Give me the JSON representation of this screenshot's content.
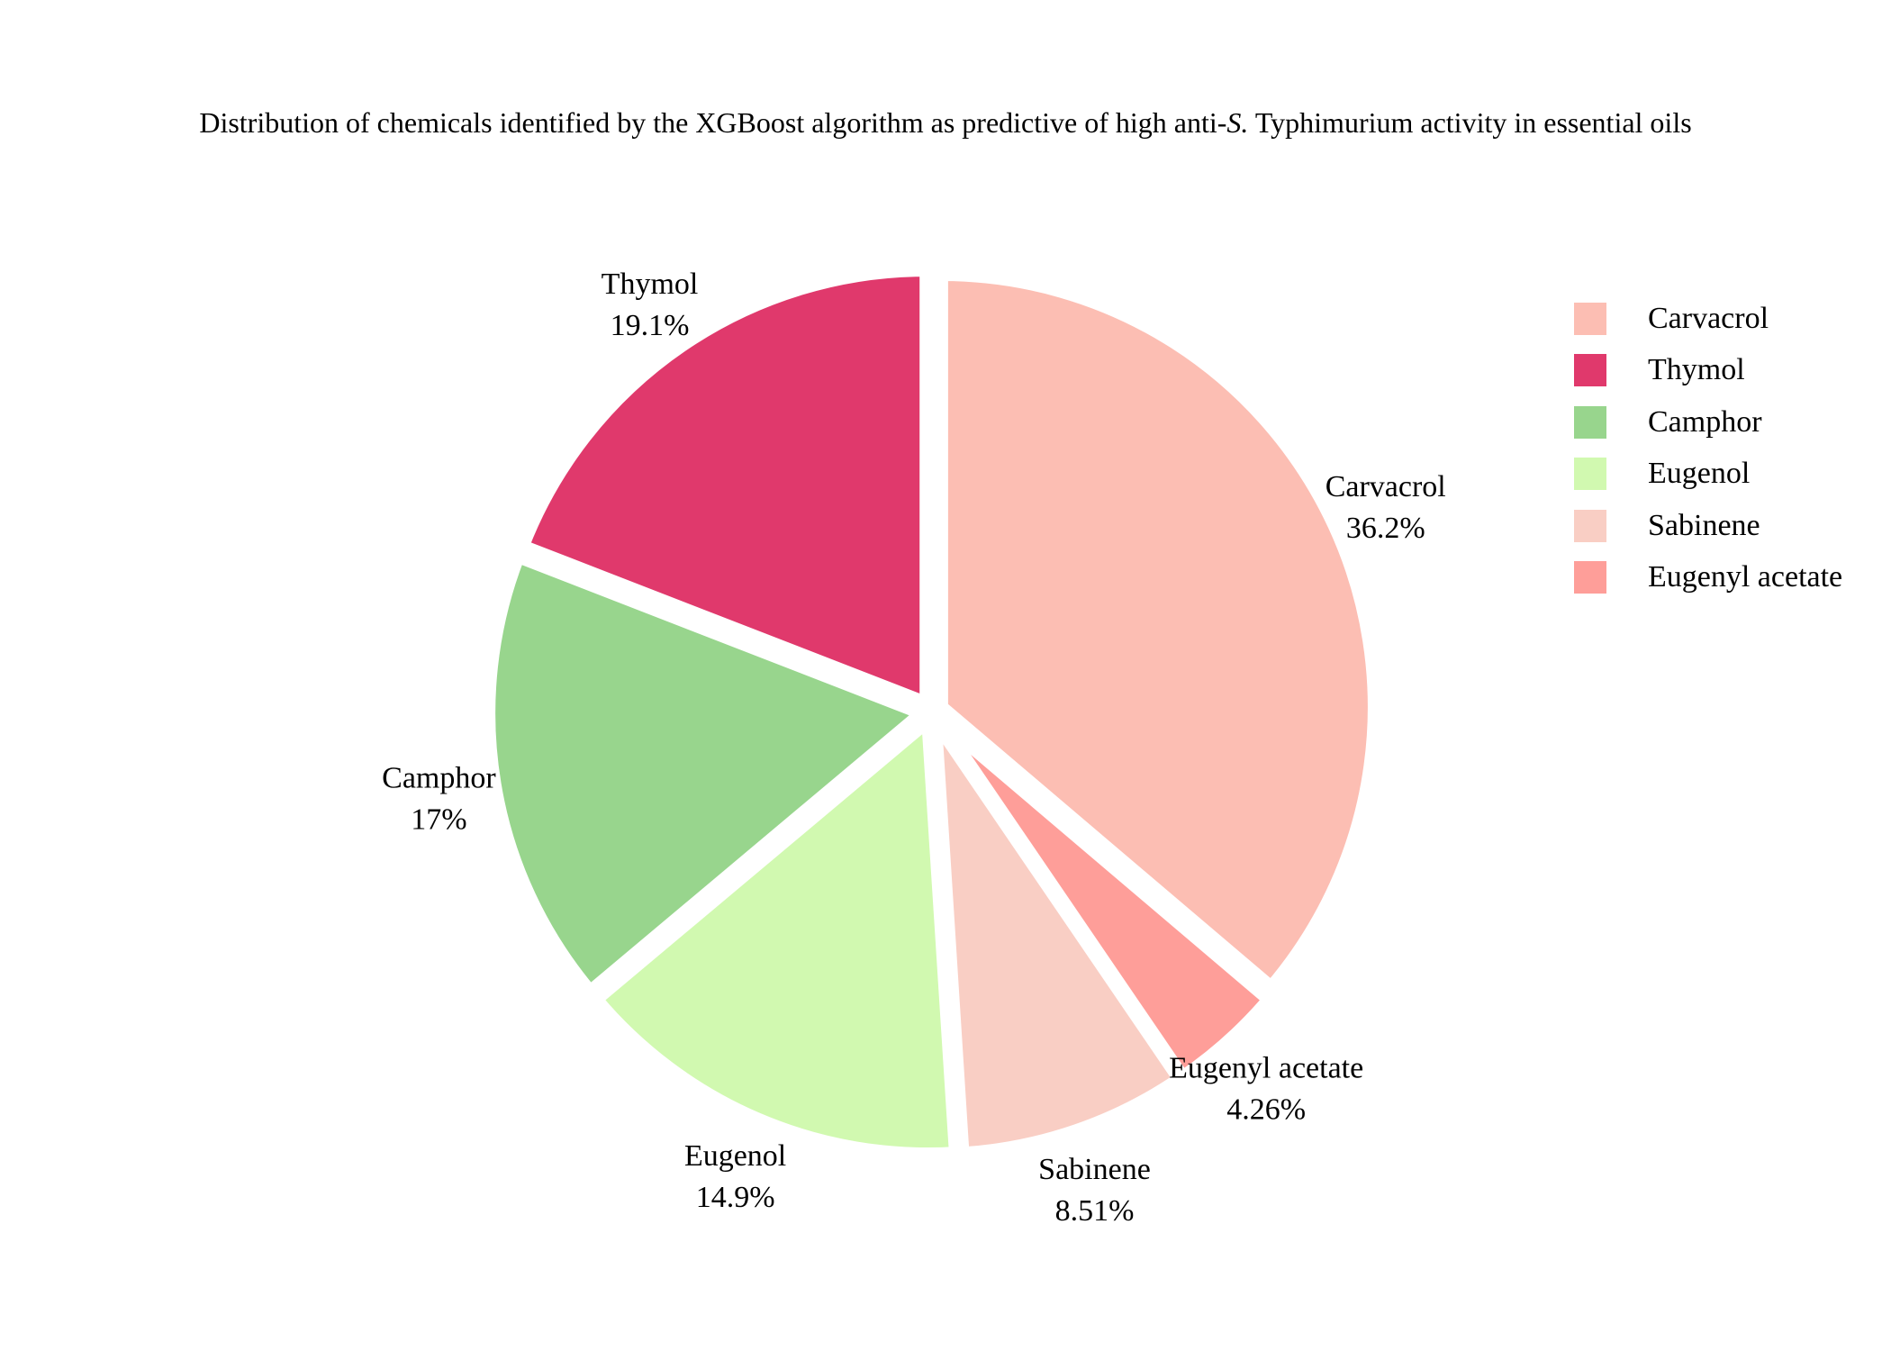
{
  "chart_data": {
    "type": "pie",
    "title": {
      "before": "Distribution of chemicals identified by the XGBoost algorithm as predictive of high anti-",
      "italic": "S.",
      "after": " Typhimurium activity in essential oils"
    },
    "slices": [
      {
        "label": "Carvacrol",
        "value": 36.2,
        "pct_label": "36.2%",
        "color": "#fcbeb3"
      },
      {
        "label": "Eugenyl acetate",
        "value": 4.26,
        "pct_label": "4.26%",
        "color": "#fe9e99"
      },
      {
        "label": "Sabinene",
        "value": 8.51,
        "pct_label": "8.51%",
        "color": "#f9cec4"
      },
      {
        "label": "Eugenol",
        "value": 14.9,
        "pct_label": "14.9%",
        "color": "#d1f9b0"
      },
      {
        "label": "Camphor",
        "value": 17,
        "pct_label": "17%",
        "color": "#98d58d"
      },
      {
        "label": "Thymol",
        "value": 19.1,
        "pct_label": "19.1%",
        "color": "#e0396c"
      }
    ],
    "legend": {
      "placement": "right",
      "entries": [
        {
          "label": "Carvacrol",
          "color": "#fcbeb3"
        },
        {
          "label": "Thymol",
          "color": "#e0396c"
        },
        {
          "label": "Camphor",
          "color": "#98d58d"
        },
        {
          "label": "Eugenol",
          "color": "#d1f9b0"
        },
        {
          "label": "Sabinene",
          "color": "#f9cec4"
        },
        {
          "label": "Eugenyl acetate",
          "color": "#fe9e99"
        }
      ]
    }
  }
}
